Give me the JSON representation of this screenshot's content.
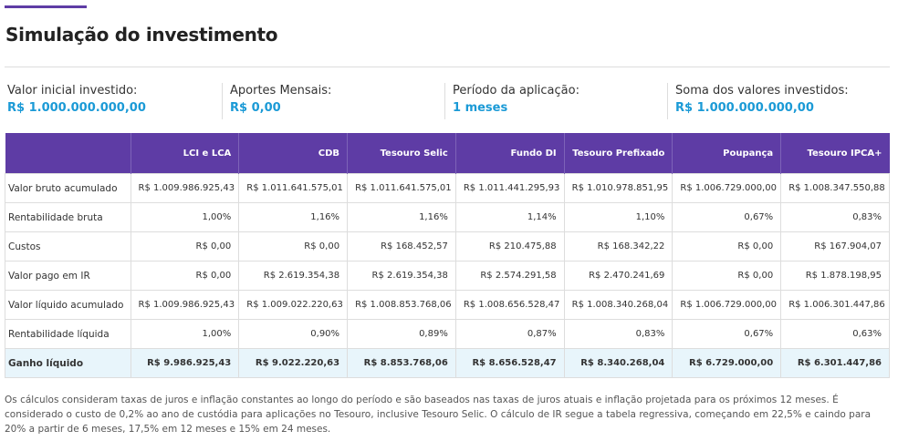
{
  "header": {
    "title": "Simulação do investimento"
  },
  "summary": [
    {
      "label": "Valor inicial investido:",
      "value": "R$ 1.000.000.000,00"
    },
    {
      "label": "Aportes Mensais:",
      "value": "R$ 0,00"
    },
    {
      "label": "Período da aplicação:",
      "value": "1 meses"
    },
    {
      "label": "Soma dos valores investidos:",
      "value": "R$ 1.000.000.000,00"
    }
  ],
  "table": {
    "columns": [
      "LCI e LCA",
      "CDB",
      "Tesouro Selic",
      "Fundo DI",
      "Tesouro Prefixado",
      "Poupança",
      "Tesouro IPCA+"
    ],
    "rows": [
      {
        "label": "Valor bruto acumulado",
        "cells": [
          "R$ 1.009.986.925,43",
          "R$ 1.011.641.575,01",
          "R$ 1.011.641.575,01",
          "R$ 1.011.441.295,93",
          "R$ 1.010.978.851,95",
          "R$ 1.006.729.000,00",
          "R$ 1.008.347.550,88"
        ]
      },
      {
        "label": "Rentabilidade bruta",
        "cells": [
          "1,00%",
          "1,16%",
          "1,16%",
          "1,14%",
          "1,10%",
          "0,67%",
          "0,83%"
        ]
      },
      {
        "label": "Custos",
        "cells": [
          "R$ 0,00",
          "R$ 0,00",
          "R$ 168.452,57",
          "R$ 210.475,88",
          "R$ 168.342,22",
          "R$ 0,00",
          "R$ 167.904,07"
        ]
      },
      {
        "label": "Valor pago em IR",
        "cells": [
          "R$ 0,00",
          "R$ 2.619.354,38",
          "R$ 2.619.354,38",
          "R$ 2.574.291,58",
          "R$ 2.470.241,69",
          "R$ 0,00",
          "R$ 1.878.198,95"
        ]
      },
      {
        "label": "Valor líquido acumulado",
        "cells": [
          "R$ 1.009.986.925,43",
          "R$ 1.009.022.220,63",
          "R$ 1.008.853.768,06",
          "R$ 1.008.656.528,47",
          "R$ 1.008.340.268,04",
          "R$ 1.006.729.000,00",
          "R$ 1.006.301.447,86"
        ]
      },
      {
        "label": "Rentabilidade líquida",
        "cells": [
          "1,00%",
          "0,90%",
          "0,89%",
          "0,87%",
          "0,83%",
          "0,67%",
          "0,63%"
        ]
      },
      {
        "label": "Ganho líquido",
        "cells": [
          "R$ 9.986.925,43",
          "R$ 9.022.220,63",
          "R$ 8.853.768,06",
          "R$ 8.656.528,47",
          "R$ 8.340.268,04",
          "R$ 6.729.000,00",
          "R$ 6.301.447,86"
        ]
      }
    ]
  },
  "footnote": "Os cálculos consideram taxas de juros e inflação constantes ao longo do período e são baseados nas taxas de juros atuais e inflação projetada para os próximos 12 meses. É considerado o custo de 0,2% ao ano de custódia para aplicações no Tesouro, inclusive Tesouro Selic. O cálculo de IR segue a tabela regressiva, começando em 22,5% e caindo para 20% a partir de 6 meses, 17,5% em 12 meses e 15% em 24 meses."
}
